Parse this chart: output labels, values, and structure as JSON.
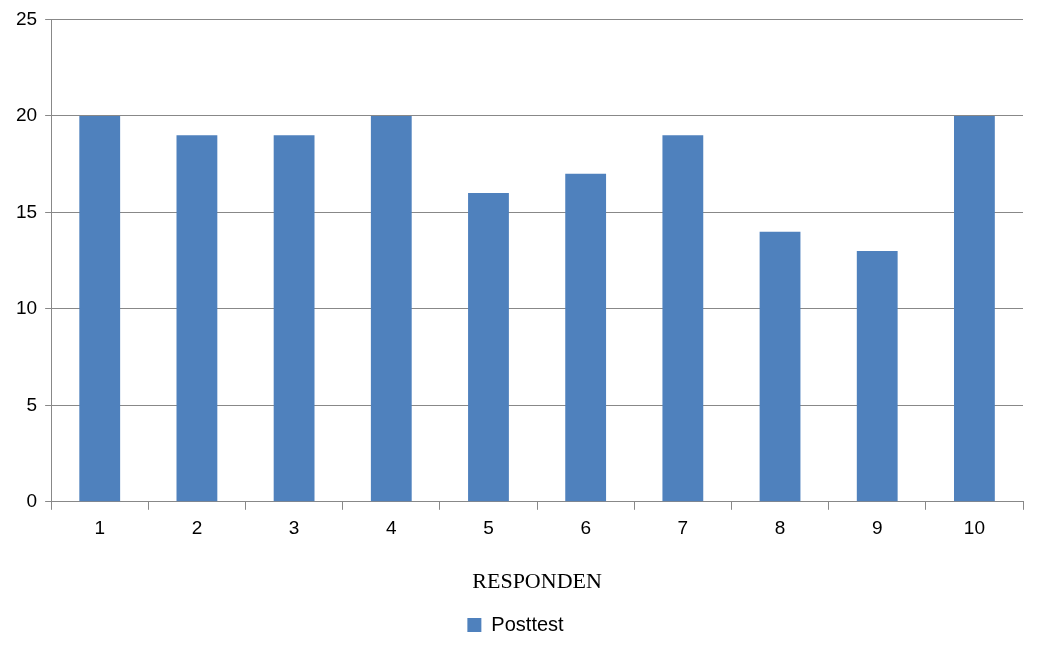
{
  "chart_data": {
    "type": "bar",
    "categories": [
      "1",
      "2",
      "3",
      "4",
      "5",
      "6",
      "7",
      "8",
      "9",
      "10"
    ],
    "series": [
      {
        "name": "Posttest",
        "color": "#4f81bd",
        "values": [
          20,
          19,
          19,
          20,
          16,
          17,
          19,
          14,
          13,
          20
        ]
      }
    ],
    "xlabel": "RESPONDEN",
    "ylim": [
      0,
      25
    ],
    "yticks": [
      0,
      5,
      10,
      15,
      20,
      25
    ],
    "grid": "y",
    "legend": "bottom"
  }
}
